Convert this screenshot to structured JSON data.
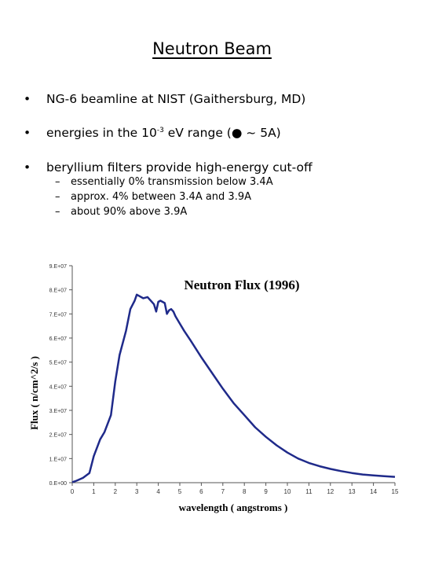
{
  "slide": {
    "title": "Neutron Beam",
    "bullets": [
      {
        "marker": "•",
        "text": "NG-6 beamline at NIST (Gaithersburg, MD)"
      },
      {
        "marker": "•",
        "text_before": "energies in the 10",
        "sup": "-3",
        "text_after": " eV range (● ~ 5A)"
      },
      {
        "marker": "•",
        "text": "beryllium filters provide high-energy cut-off"
      }
    ],
    "sub_bullets": [
      {
        "marker": "–",
        "text": "essentially 0% transmission below 3.4A"
      },
      {
        "marker": "–",
        "text": "approx. 4% between 3.4A and 3.9A"
      },
      {
        "marker": "–",
        "text": "about 90% above 3.9A"
      }
    ]
  },
  "chart_data": {
    "type": "line",
    "title": "Neutron Flux (1996)",
    "xlabel": "wavelength ( angstroms )",
    "ylabel": "Flux ( n/cm^2/s )",
    "xlim": [
      0,
      15
    ],
    "ylim": [
      0,
      90000000
    ],
    "x_ticks": [
      "0",
      "1",
      "2",
      "3",
      "4",
      "5",
      "6",
      "7",
      "8",
      "9",
      "10",
      "11",
      "12",
      "13",
      "14",
      "15"
    ],
    "y_ticks": [
      "0.E+00",
      "1.E+07",
      "2.E+07",
      "3.E+07",
      "4.E+07",
      "5.E+07",
      "6.E+07",
      "7.E+07",
      "8.E+07",
      "9.E+07"
    ],
    "line_color": "#1f2a8a",
    "grid": false,
    "series": [
      {
        "x": [
          0.0,
          0.2,
          0.5,
          0.8,
          1.0,
          1.3,
          1.5,
          1.8,
          2.0,
          2.2,
          2.5,
          2.7,
          2.9,
          3.0,
          3.1,
          3.3,
          3.5,
          3.6,
          3.8,
          3.9,
          4.0,
          4.1,
          4.3,
          4.4,
          4.5,
          4.6,
          4.7,
          4.8,
          5.0,
          5.2,
          5.5,
          6.0,
          6.5,
          7.0,
          7.5,
          8.0,
          8.5,
          9.0,
          9.5,
          10.0,
          10.5,
          11.0,
          11.5,
          12.0,
          12.5,
          13.0,
          13.5,
          14.0,
          14.5,
          15.0
        ],
        "y": [
          200000,
          800000,
          2000000,
          4000000,
          11000000,
          18000000,
          21000000,
          28000000,
          42000000,
          53000000,
          63000000,
          72000000,
          75500000,
          78000000,
          77500000,
          76500000,
          77000000,
          76000000,
          74000000,
          71000000,
          75000000,
          75500000,
          74500000,
          70000000,
          71500000,
          72000000,
          71000000,
          69000000,
          66000000,
          63000000,
          59000000,
          52000000,
          45500000,
          39000000,
          33000000,
          28000000,
          23000000,
          19000000,
          15500000,
          12500000,
          10000000,
          8200000,
          6800000,
          5700000,
          4800000,
          4000000,
          3400000,
          3000000,
          2700000,
          2400000
        ]
      }
    ]
  }
}
